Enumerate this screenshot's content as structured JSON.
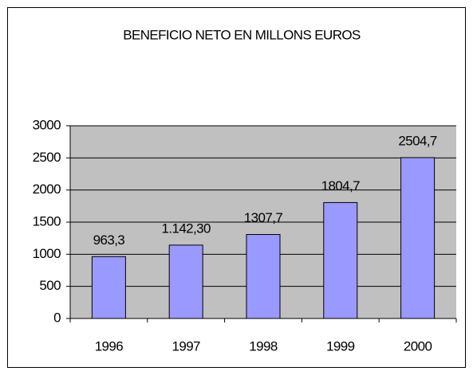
{
  "chart_data": {
    "type": "bar",
    "title": "BENEFICIO NETO EN MILLONS EUROS",
    "categories": [
      "1996",
      "1997",
      "1998",
      "1999",
      "2000"
    ],
    "values": [
      963.3,
      1142.3,
      1307.7,
      1804.7,
      2504.7
    ],
    "value_labels": [
      "963,3",
      "1.142,30",
      "1307,7",
      "1804,7",
      "2504,7"
    ],
    "color": "#9999ff",
    "ylim": [
      0,
      3000
    ],
    "yticks": [
      0,
      500,
      1000,
      1500,
      2000,
      2500,
      3000
    ],
    "grid": true
  }
}
